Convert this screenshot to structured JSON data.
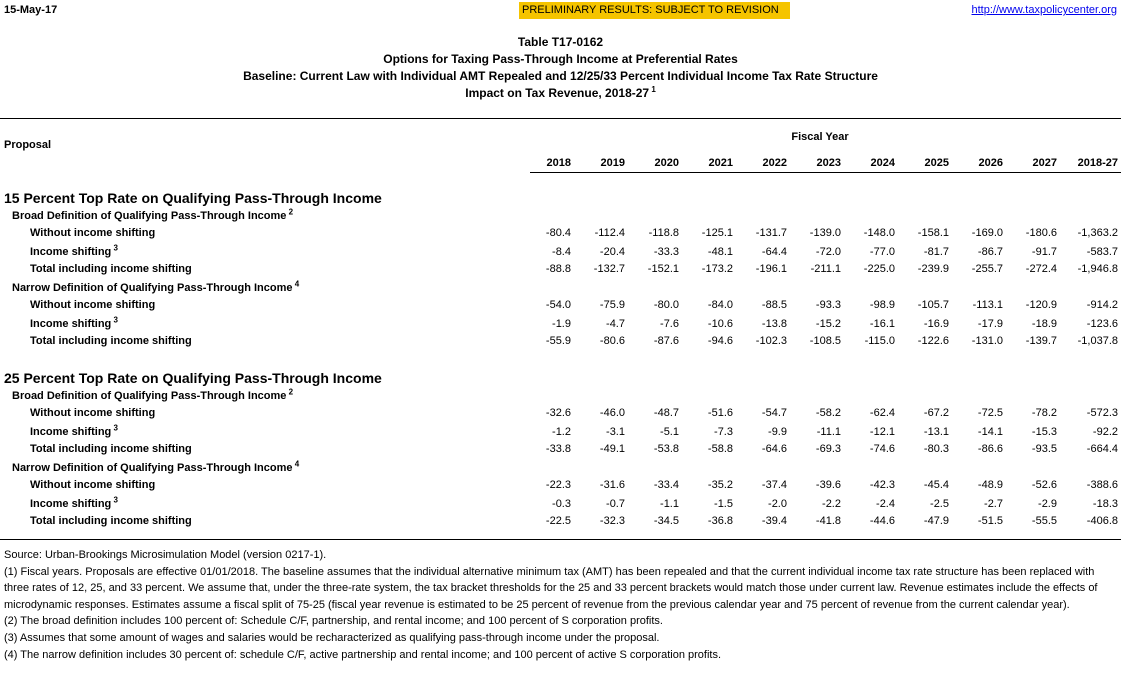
{
  "header": {
    "date": "15-May-17",
    "banner": "PRELIMINARY RESULTS: SUBJECT TO REVISION",
    "url": "http://www.taxpolicycenter.org"
  },
  "title": {
    "lines": [
      "Table T17-0162",
      "Options for Taxing Pass-Through Income at Preferential Rates",
      "Baseline: Current Law with Individual AMT Repealed and 12/25/33 Percent Individual Income Tax Rate Structure",
      "Impact on Tax Revenue, 2018-27"
    ],
    "footnote": "1"
  },
  "table": {
    "stub_header": "Proposal",
    "group_header": "Fiscal Year",
    "columns": [
      "2018",
      "2019",
      "2020",
      "2021",
      "2022",
      "2023",
      "2024",
      "2025",
      "2026",
      "2027",
      "2018-27"
    ],
    "sections": [
      {
        "title": "15 Percent Top Rate on Qualifying Pass-Through Income",
        "groups": [
          {
            "label": "Broad Definition of Qualifying Pass-Through Income",
            "footnote": "2",
            "rows": [
              {
                "label": "Without income shifting",
                "values": [
                  "-80.4",
                  "-112.4",
                  "-118.8",
                  "-125.1",
                  "-131.7",
                  "-139.0",
                  "-148.0",
                  "-158.1",
                  "-169.0",
                  "-180.6",
                  "-1,363.2"
                ]
              },
              {
                "label": "Income shifting",
                "footnote": "3",
                "values": [
                  "-8.4",
                  "-20.4",
                  "-33.3",
                  "-48.1",
                  "-64.4",
                  "-72.0",
                  "-77.0",
                  "-81.7",
                  "-86.7",
                  "-91.7",
                  "-583.7"
                ]
              },
              {
                "label": "Total including income shifting",
                "values": [
                  "-88.8",
                  "-132.7",
                  "-152.1",
                  "-173.2",
                  "-196.1",
                  "-211.1",
                  "-225.0",
                  "-239.9",
                  "-255.7",
                  "-272.4",
                  "-1,946.8"
                ]
              }
            ]
          },
          {
            "label": "Narrow Definition of Qualifying Pass-Through Income",
            "footnote": "4",
            "rows": [
              {
                "label": "Without income shifting",
                "values": [
                  "-54.0",
                  "-75.9",
                  "-80.0",
                  "-84.0",
                  "-88.5",
                  "-93.3",
                  "-98.9",
                  "-105.7",
                  "-113.1",
                  "-120.9",
                  "-914.2"
                ]
              },
              {
                "label": "Income shifting",
                "footnote": "3",
                "values": [
                  "-1.9",
                  "-4.7",
                  "-7.6",
                  "-10.6",
                  "-13.8",
                  "-15.2",
                  "-16.1",
                  "-16.9",
                  "-17.9",
                  "-18.9",
                  "-123.6"
                ]
              },
              {
                "label": "Total including income shifting",
                "values": [
                  "-55.9",
                  "-80.6",
                  "-87.6",
                  "-94.6",
                  "-102.3",
                  "-108.5",
                  "-115.0",
                  "-122.6",
                  "-131.0",
                  "-139.7",
                  "-1,037.8"
                ]
              }
            ]
          }
        ]
      },
      {
        "title": "25 Percent Top Rate on Qualifying Pass-Through Income",
        "groups": [
          {
            "label": "Broad Definition of Qualifying Pass-Through Income",
            "footnote": "2",
            "rows": [
              {
                "label": "Without income shifting",
                "values": [
                  "-32.6",
                  "-46.0",
                  "-48.7",
                  "-51.6",
                  "-54.7",
                  "-58.2",
                  "-62.4",
                  "-67.2",
                  "-72.5",
                  "-78.2",
                  "-572.3"
                ]
              },
              {
                "label": "Income shifting",
                "footnote": "3",
                "values": [
                  "-1.2",
                  "-3.1",
                  "-5.1",
                  "-7.3",
                  "-9.9",
                  "-11.1",
                  "-12.1",
                  "-13.1",
                  "-14.1",
                  "-15.3",
                  "-92.2"
                ]
              },
              {
                "label": "Total including income shifting",
                "values": [
                  "-33.8",
                  "-49.1",
                  "-53.8",
                  "-58.8",
                  "-64.6",
                  "-69.3",
                  "-74.6",
                  "-80.3",
                  "-86.6",
                  "-93.5",
                  "-664.4"
                ]
              }
            ]
          },
          {
            "label": "Narrow Definition of Qualifying Pass-Through Income",
            "footnote": "4",
            "rows": [
              {
                "label": "Without income shifting",
                "values": [
                  "-22.3",
                  "-31.6",
                  "-33.4",
                  "-35.2",
                  "-37.4",
                  "-39.6",
                  "-42.3",
                  "-45.4",
                  "-48.9",
                  "-52.6",
                  "-388.6"
                ]
              },
              {
                "label": "Income shifting",
                "footnote": "3",
                "values": [
                  "-0.3",
                  "-0.7",
                  "-1.1",
                  "-1.5",
                  "-2.0",
                  "-2.2",
                  "-2.4",
                  "-2.5",
                  "-2.7",
                  "-2.9",
                  "-18.3"
                ]
              },
              {
                "label": "Total including income shifting",
                "values": [
                  "-22.5",
                  "-32.3",
                  "-34.5",
                  "-36.8",
                  "-39.4",
                  "-41.8",
                  "-44.6",
                  "-47.9",
                  "-51.5",
                  "-55.5",
                  "-406.8"
                ]
              }
            ]
          }
        ]
      }
    ]
  },
  "notes": [
    "Source: Urban-Brookings Microsimulation Model (version 0217-1).",
    "(1) Fiscal years. Proposals are effective 01/01/2018. The baseline assumes that the individual alternative minimum tax (AMT) has been repealed and that the current individual income tax rate structure has been replaced with three rates of 12, 25, and 33 percent. We assume that, under the three-rate system, the tax bracket thresholds for the 25 and 33 percent brackets would match those under current law. Revenue estimates include the effects of microdynamic responses. Estimates assume a fiscal split of 75-25 (fiscal year revenue is estimated to be 25 percent of revenue from the previous calendar year and 75 percent of revenue from the current calendar year).",
    "(2) The broad definition includes 100 percent of: Schedule C/F, partnership, and rental income; and 100 percent of S corporation profits.",
    "(3) Assumes that some amount of wages and salaries would be recharacterized as qualifying pass-through income under the proposal.",
    "(4) The narrow definition includes 30 percent of: schedule C/F, active partnership and rental income; and 100 percent of active S corporation profits."
  ]
}
